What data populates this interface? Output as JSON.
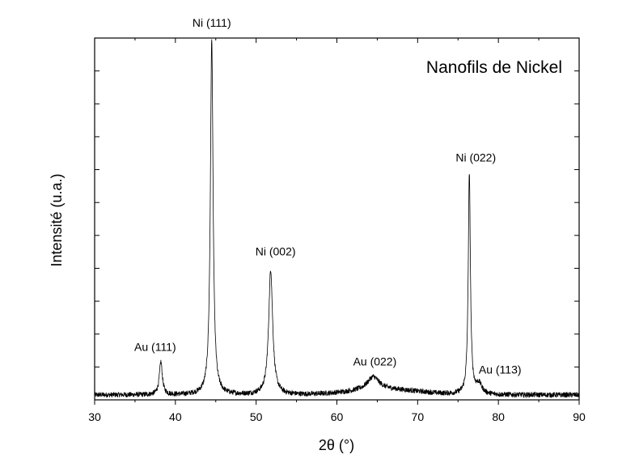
{
  "chart_data": {
    "type": "line",
    "title": "Nanofils de Nickel",
    "xlabel": "2θ (°)",
    "ylabel": "Intensité (u.a.)",
    "xlim": [
      30,
      90
    ],
    "ylim": [
      0,
      110
    ],
    "x_ticks": [
      30,
      40,
      50,
      60,
      70,
      80,
      90
    ],
    "y_ticks_labeled": false,
    "grid": false,
    "legend": "none",
    "line_color": "#000000",
    "series": [
      {
        "baseline": 1.5,
        "peaks": [
          {
            "label": "Au (111)",
            "x": 38.2,
            "height": 10
          },
          {
            "label": "Ni (111)",
            "x": 44.5,
            "height": 108
          },
          {
            "label": "Ni (002)",
            "x": 51.8,
            "height": 38
          },
          {
            "label": "Au (022)",
            "x": 64.5,
            "height": 4
          },
          {
            "label": "Ni (022)",
            "x": 76.4,
            "height": 67
          },
          {
            "label": "Au (113)",
            "x": 77.6,
            "height": 3
          }
        ]
      }
    ]
  }
}
